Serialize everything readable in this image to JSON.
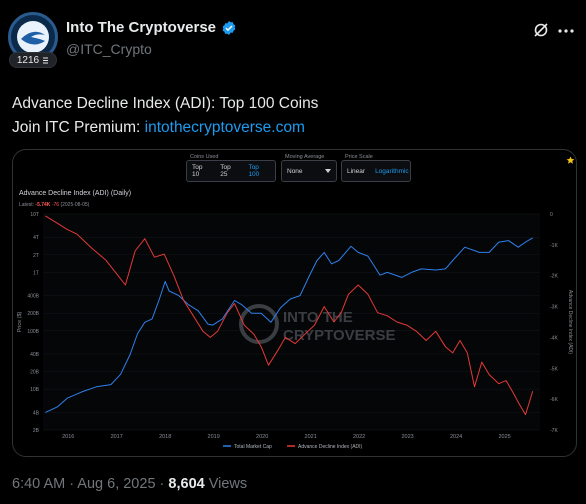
{
  "user": {
    "display_name": "Into The Cryptoverse",
    "handle": "@ITC_Crypto",
    "level_badge": "1216",
    "verified": true
  },
  "tweet": {
    "line1": "Advance Decline Index (ADI): Top 100 Coins",
    "line2_prefix": "Join ITC Premium: ",
    "line2_link": "intothecryptoverse.com"
  },
  "controls": {
    "coins_used_label": "Coins Used",
    "coins_used_options": [
      "Top 10",
      "Top 25",
      "Top 100"
    ],
    "coins_used_selected": "Top 100",
    "moving_average_label": "Moving Average",
    "moving_average_value": "None",
    "price_scale_label": "Price Scale",
    "price_scale_options": [
      "Linear",
      "Logarithmic"
    ],
    "price_scale_selected": "Logarithmic"
  },
  "chart_header": {
    "title": "Advance Decline Index (ADI) (Daily)",
    "latest_label": "Latest:",
    "latest_value": "-5.74K",
    "latest_change": "-76",
    "latest_date": "(2025-08-05)"
  },
  "watermark": {
    "line1": "INTO THE",
    "line2": "CRYPTOVERSE"
  },
  "meta": {
    "time": "6:40 AM",
    "date": "Aug 6, 2025",
    "views_count": "8,604",
    "views_label": "Views"
  },
  "colors": {
    "market_cap": "#2f80ed",
    "adi": "#e53935",
    "link": "#1d9bf0"
  },
  "chart_data": {
    "type": "line",
    "title": "Advance Decline Index (ADI) (Daily)",
    "x_ticks": [
      "2016",
      "2017",
      "2018",
      "2019",
      "2020",
      "2021",
      "2022",
      "2023",
      "2024",
      "2025"
    ],
    "y_left_label": "Price ($)",
    "y_left_ticks": [
      "10T",
      "4T",
      "2T",
      "1T",
      "400B",
      "200B",
      "100B",
      "40B",
      "20B",
      "10B",
      "4B",
      "2B"
    ],
    "y_left_scale": "log",
    "y_right_label": "Advance Decline Index (ADI)",
    "y_right_ticks": [
      "0",
      "-1K",
      "-2K",
      "-3K",
      "-4K",
      "-5K",
      "-6K",
      "-7K"
    ],
    "y_right_range": [
      -7000,
      0
    ],
    "legend": [
      "Total Market Cap",
      "Advance Decline Index (ADI)"
    ],
    "legend_position": "bottom",
    "series": [
      {
        "name": "Total Market Cap",
        "axis": "left",
        "points": [
          [
            2015.55,
            4000000000.0
          ],
          [
            2015.8,
            5000000000.0
          ],
          [
            2016.0,
            7000000000.0
          ],
          [
            2016.3,
            9000000000.0
          ],
          [
            2016.6,
            11000000000.0
          ],
          [
            2016.9,
            12000000000.0
          ],
          [
            2017.1,
            18000000000.0
          ],
          [
            2017.3,
            40000000000.0
          ],
          [
            2017.45,
            90000000000.0
          ],
          [
            2017.6,
            140000000000.0
          ],
          [
            2017.75,
            160000000000.0
          ],
          [
            2017.9,
            350000000000.0
          ],
          [
            2018.02,
            700000000000.0
          ],
          [
            2018.1,
            480000000000.0
          ],
          [
            2018.3,
            400000000000.0
          ],
          [
            2018.5,
            280000000000.0
          ],
          [
            2018.7,
            220000000000.0
          ],
          [
            2018.9,
            130000000000.0
          ],
          [
            2019.0,
            125000000000.0
          ],
          [
            2019.2,
            160000000000.0
          ],
          [
            2019.45,
            330000000000.0
          ],
          [
            2019.6,
            280000000000.0
          ],
          [
            2019.8,
            200000000000.0
          ],
          [
            2020.0,
            200000000000.0
          ],
          [
            2020.2,
            140000000000.0
          ],
          [
            2020.4,
            250000000000.0
          ],
          [
            2020.6,
            350000000000.0
          ],
          [
            2020.8,
            400000000000.0
          ],
          [
            2021.0,
            900000000000.0
          ],
          [
            2021.15,
            1600000000000.0
          ],
          [
            2021.3,
            2200000000000.0
          ],
          [
            2021.45,
            1400000000000.0
          ],
          [
            2021.6,
            1600000000000.0
          ],
          [
            2021.85,
            2800000000000.0
          ],
          [
            2022.0,
            2200000000000.0
          ],
          [
            2022.2,
            1900000000000.0
          ],
          [
            2022.45,
            900000000000.0
          ],
          [
            2022.6,
            1000000000000.0
          ],
          [
            2022.9,
            820000000000.0
          ],
          [
            2023.1,
            1000000000000.0
          ],
          [
            2023.3,
            1150000000000.0
          ],
          [
            2023.6,
            1100000000000.0
          ],
          [
            2023.8,
            1150000000000.0
          ],
          [
            2023.95,
            1600000000000.0
          ],
          [
            2024.2,
            2700000000000.0
          ],
          [
            2024.5,
            2200000000000.0
          ],
          [
            2024.7,
            2200000000000.0
          ],
          [
            2024.9,
            3300000000000.0
          ],
          [
            2025.1,
            3500000000000.0
          ],
          [
            2025.3,
            2700000000000.0
          ],
          [
            2025.45,
            3300000000000.0
          ],
          [
            2025.6,
            3900000000000.0
          ]
        ]
      },
      {
        "name": "Advance Decline Index (ADI)",
        "axis": "right",
        "points": [
          [
            2015.55,
            -60
          ],
          [
            2015.8,
            -300
          ],
          [
            2016.0,
            -500
          ],
          [
            2016.2,
            -650
          ],
          [
            2016.5,
            -1100
          ],
          [
            2016.8,
            -1500
          ],
          [
            2017.0,
            -1900
          ],
          [
            2017.2,
            -2300
          ],
          [
            2017.4,
            -1200
          ],
          [
            2017.6,
            -800
          ],
          [
            2017.8,
            -1400
          ],
          [
            2018.0,
            -1300
          ],
          [
            2018.2,
            -2000
          ],
          [
            2018.4,
            -2800
          ],
          [
            2018.6,
            -3300
          ],
          [
            2018.8,
            -3800
          ],
          [
            2018.95,
            -4000
          ],
          [
            2019.1,
            -3800
          ],
          [
            2019.3,
            -3200
          ],
          [
            2019.45,
            -2900
          ],
          [
            2019.65,
            -3600
          ],
          [
            2019.85,
            -3900
          ],
          [
            2020.0,
            -4300
          ],
          [
            2020.15,
            -4900
          ],
          [
            2020.35,
            -4400
          ],
          [
            2020.5,
            -4000
          ],
          [
            2020.7,
            -4200
          ],
          [
            2020.9,
            -3900
          ],
          [
            2021.1,
            -3600
          ],
          [
            2021.3,
            -3000
          ],
          [
            2021.5,
            -3500
          ],
          [
            2021.65,
            -3200
          ],
          [
            2021.8,
            -2600
          ],
          [
            2022.0,
            -2300
          ],
          [
            2022.2,
            -2600
          ],
          [
            2022.4,
            -3200
          ],
          [
            2022.6,
            -3300
          ],
          [
            2022.8,
            -3500
          ],
          [
            2023.0,
            -3600
          ],
          [
            2023.2,
            -3800
          ],
          [
            2023.4,
            -4100
          ],
          [
            2023.6,
            -3800
          ],
          [
            2023.8,
            -4300
          ],
          [
            2023.95,
            -4500
          ],
          [
            2024.1,
            -4100
          ],
          [
            2024.25,
            -4500
          ],
          [
            2024.4,
            -5600
          ],
          [
            2024.55,
            -4800
          ],
          [
            2024.7,
            -5200
          ],
          [
            2024.9,
            -5500
          ],
          [
            2025.05,
            -5400
          ],
          [
            2025.2,
            -5800
          ],
          [
            2025.3,
            -6100
          ],
          [
            2025.45,
            -6500
          ],
          [
            2025.55,
            -6000
          ],
          [
            2025.6,
            -5740
          ]
        ]
      }
    ]
  }
}
